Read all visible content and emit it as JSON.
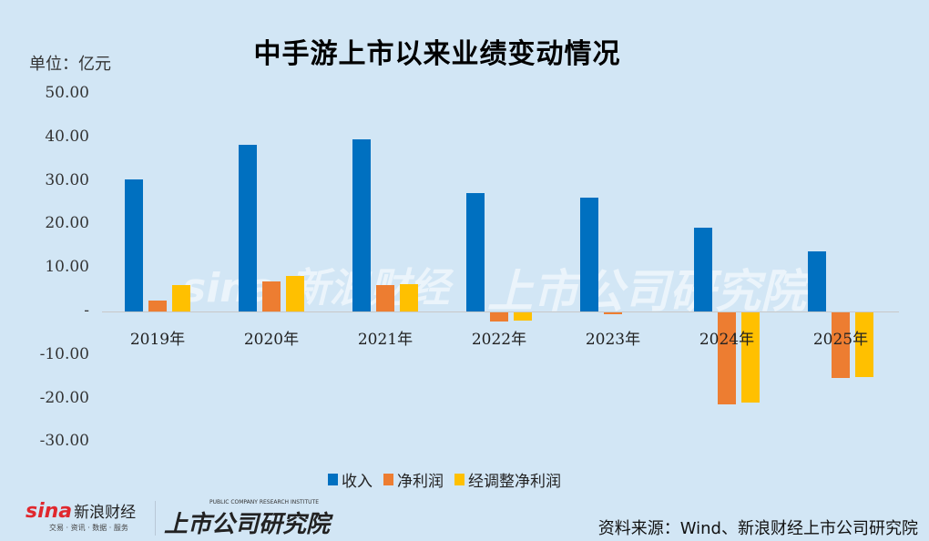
{
  "title": "中手游上市以来业绩变动情况",
  "unit": "单位：亿元",
  "source": "资料来源：Wind、新浪财经上市公司研究院",
  "watermark": {
    "left": "新浪财经",
    "right": "上市公司研究院",
    "sina": "sina"
  },
  "footer": {
    "sina_text": "新浪财经",
    "sina_sub": "交易 · 资讯 · 数据 · 服务",
    "institute": "上市公司研究院",
    "institute_sub": "PUBLIC COMPANY RESEARCH INSTITUTE"
  },
  "colors": {
    "revenue": "#0070c0",
    "net_profit": "#ed7d31",
    "adj_net_profit": "#ffc000",
    "background": "#d2e6f5"
  },
  "y_ticks": [
    "50.00",
    "40.00",
    "30.00",
    "20.00",
    "10.00",
    "-",
    "-10.00",
    "-20.00",
    "-30.00"
  ],
  "legend": [
    "收入",
    "净利润",
    "经调整净利润"
  ],
  "chart_data": {
    "type": "bar",
    "title": "中手游上市以来业绩变动情况",
    "ylabel": "单位：亿元",
    "xlabel": "",
    "categories": [
      "2019年",
      "2020年",
      "2021年",
      "2022年",
      "2023年",
      "2024年",
      "2025年"
    ],
    "series": [
      {
        "name": "收入",
        "values": [
          30.3,
          38.3,
          39.5,
          27.2,
          26.2,
          19.2,
          13.8
        ]
      },
      {
        "name": "净利润",
        "values": [
          2.5,
          6.9,
          6.1,
          -2.1,
          -0.5,
          -21.1,
          -15.1
        ]
      },
      {
        "name": "经调整净利润",
        "values": [
          6.1,
          8.2,
          6.3,
          -1.9,
          0.0,
          -20.7,
          -14.8
        ]
      }
    ],
    "ylim": [
      -30,
      50
    ],
    "grid": false,
    "legend_position": "bottom"
  }
}
